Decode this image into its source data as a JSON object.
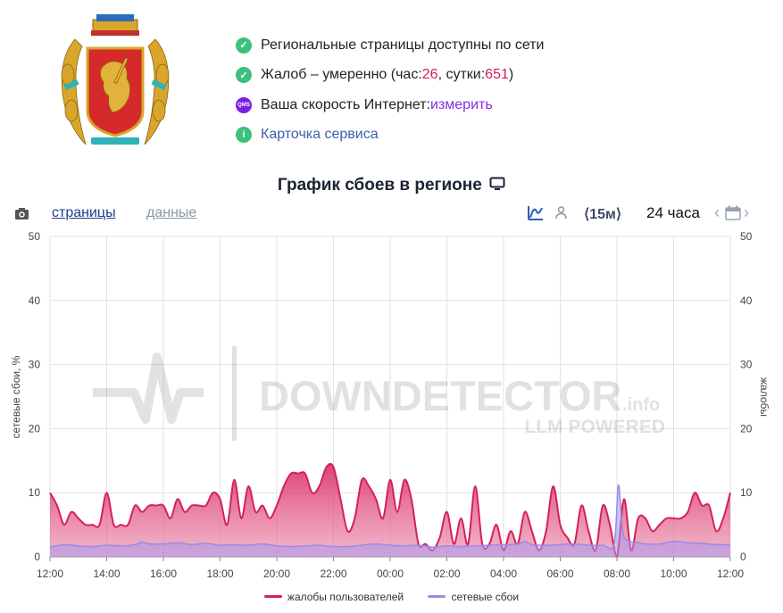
{
  "status": {
    "line1": "Региональные страницы доступны по сети",
    "line2_prefix": "Жалоб – умеренно (час: ",
    "hour_count": "26",
    "line2_mid": ", сутки: ",
    "day_count": "651",
    "line2_suffix": ")",
    "line3_prefix": "Ваша скорость Интернет: ",
    "line3_link": "измерить",
    "line3_icon_text": "QMS",
    "line4_link": "Карточка сервиса"
  },
  "chart_title": "График сбоев в регионе",
  "toolbar": {
    "tab_pages": "страницы",
    "tab_data": "данные",
    "interval": "⟨15м⟩",
    "range": "24 часа"
  },
  "watermark": {
    "main": "DOWNDETECTOR",
    "suffix": ".info",
    "sub": "LLM POWERED"
  },
  "colors": {
    "complaints": "#d6205a",
    "outages": "#9a8ae8",
    "ok": "#3cc07c"
  },
  "chart_data": {
    "type": "area",
    "title": "График сбоев в регионе",
    "ylabel_left": "сетевые сбои, %",
    "ylabel_right": "жалобы",
    "ylim": [
      0,
      50
    ],
    "yticks": [
      0,
      10,
      20,
      30,
      40,
      50
    ],
    "x_hours_start": "12:00",
    "xlim": [
      0,
      24
    ],
    "xtick_labels": [
      "12:00",
      "14:00",
      "16:00",
      "18:00",
      "20:00",
      "22:00",
      "00:00",
      "02:00",
      "04:00",
      "06:00",
      "08:00",
      "10:00",
      "12:00"
    ],
    "legend": "bottom-center",
    "grid": true,
    "series": [
      {
        "name": "жалобы пользователей",
        "points": [
          [
            0,
            10
          ],
          [
            0.25,
            8
          ],
          [
            0.5,
            5
          ],
          [
            0.75,
            7
          ],
          [
            1.0,
            6
          ],
          [
            1.25,
            5
          ],
          [
            1.5,
            5
          ],
          [
            1.75,
            5
          ],
          [
            2.0,
            10
          ],
          [
            2.25,
            5
          ],
          [
            2.5,
            5
          ],
          [
            2.75,
            5
          ],
          [
            3.0,
            8
          ],
          [
            3.25,
            7
          ],
          [
            3.5,
            8
          ],
          [
            3.75,
            8
          ],
          [
            4.0,
            8
          ],
          [
            4.25,
            6
          ],
          [
            4.5,
            9
          ],
          [
            4.75,
            7
          ],
          [
            5.0,
            8
          ],
          [
            5.25,
            8
          ],
          [
            5.5,
            8
          ],
          [
            5.75,
            10
          ],
          [
            6.0,
            9
          ],
          [
            6.25,
            5
          ],
          [
            6.5,
            12
          ],
          [
            6.75,
            6
          ],
          [
            7.0,
            11
          ],
          [
            7.25,
            7
          ],
          [
            7.5,
            8
          ],
          [
            7.75,
            6
          ],
          [
            8.0,
            8
          ],
          [
            8.25,
            11
          ],
          [
            8.5,
            13
          ],
          [
            8.75,
            13
          ],
          [
            9.0,
            13
          ],
          [
            9.25,
            10
          ],
          [
            9.5,
            11
          ],
          [
            9.75,
            14
          ],
          [
            10.0,
            14
          ],
          [
            10.25,
            9
          ],
          [
            10.5,
            4
          ],
          [
            10.75,
            6
          ],
          [
            11.0,
            12
          ],
          [
            11.25,
            11
          ],
          [
            11.5,
            9
          ],
          [
            11.75,
            6
          ],
          [
            12.0,
            12
          ],
          [
            12.25,
            7
          ],
          [
            12.5,
            12
          ],
          [
            12.75,
            9
          ],
          [
            13.0,
            2
          ],
          [
            13.25,
            2
          ],
          [
            13.5,
            1
          ],
          [
            13.75,
            3
          ],
          [
            14.0,
            7
          ],
          [
            14.25,
            2
          ],
          [
            14.5,
            6
          ],
          [
            14.75,
            2
          ],
          [
            15.0,
            11
          ],
          [
            15.25,
            2
          ],
          [
            15.5,
            2
          ],
          [
            15.75,
            5
          ],
          [
            16.0,
            1
          ],
          [
            16.25,
            4
          ],
          [
            16.5,
            2
          ],
          [
            16.75,
            7
          ],
          [
            17.0,
            4
          ],
          [
            17.25,
            1
          ],
          [
            17.5,
            4
          ],
          [
            17.75,
            11
          ],
          [
            18.0,
            5
          ],
          [
            18.25,
            3
          ],
          [
            18.5,
            2
          ],
          [
            18.75,
            8
          ],
          [
            19.0,
            4
          ],
          [
            19.25,
            1
          ],
          [
            19.5,
            8
          ],
          [
            19.75,
            5
          ],
          [
            20.0,
            0
          ],
          [
            20.25,
            9
          ],
          [
            20.5,
            1
          ],
          [
            20.75,
            6
          ],
          [
            21.0,
            6
          ],
          [
            21.25,
            4
          ],
          [
            21.5,
            5
          ],
          [
            21.75,
            6
          ],
          [
            22.0,
            6
          ],
          [
            22.25,
            6
          ],
          [
            22.5,
            7
          ],
          [
            22.75,
            10
          ],
          [
            23.0,
            8
          ],
          [
            23.25,
            8
          ],
          [
            23.5,
            4
          ],
          [
            23.75,
            6
          ],
          [
            24.0,
            10
          ]
        ]
      },
      {
        "name": "сетевые сбои",
        "points": [
          [
            0,
            1.5
          ],
          [
            0.5,
            1.9
          ],
          [
            1,
            1.7
          ],
          [
            1.5,
            1.6
          ],
          [
            2,
            1.8
          ],
          [
            2.5,
            1.7
          ],
          [
            3,
            1.9
          ],
          [
            3.25,
            2.3
          ],
          [
            3.5,
            2.0
          ],
          [
            4,
            2.0
          ],
          [
            4.5,
            2.2
          ],
          [
            5,
            1.9
          ],
          [
            5.5,
            2.1
          ],
          [
            6,
            1.8
          ],
          [
            6.5,
            1.9
          ],
          [
            7,
            1.8
          ],
          [
            7.5,
            2.0
          ],
          [
            8,
            1.7
          ],
          [
            8.5,
            1.6
          ],
          [
            9,
            1.7
          ],
          [
            9.5,
            1.8
          ],
          [
            10,
            1.6
          ],
          [
            10.5,
            1.6
          ],
          [
            11,
            1.8
          ],
          [
            11.5,
            2.0
          ],
          [
            12,
            1.8
          ],
          [
            12.5,
            1.7
          ],
          [
            13,
            1.8
          ],
          [
            13.5,
            1.5
          ],
          [
            14,
            1.7
          ],
          [
            14.5,
            1.6
          ],
          [
            15,
            1.7
          ],
          [
            15.5,
            1.8
          ],
          [
            16,
            1.9
          ],
          [
            16.5,
            2.0
          ],
          [
            16.75,
            2.4
          ],
          [
            17,
            1.9
          ],
          [
            17.5,
            1.8
          ],
          [
            18,
            1.9
          ],
          [
            18.5,
            2.0
          ],
          [
            19,
            1.8
          ],
          [
            19.5,
            1.8
          ],
          [
            19.9,
            2.0
          ],
          [
            20.05,
            11.2
          ],
          [
            20.2,
            4.0
          ],
          [
            20.4,
            2.5
          ],
          [
            20.75,
            2.2
          ],
          [
            21,
            2.0
          ],
          [
            21.5,
            2.0
          ],
          [
            22,
            2.4
          ],
          [
            22.5,
            2.2
          ],
          [
            23,
            2.1
          ],
          [
            23.5,
            1.9
          ],
          [
            24,
            1.9
          ]
        ]
      }
    ]
  }
}
